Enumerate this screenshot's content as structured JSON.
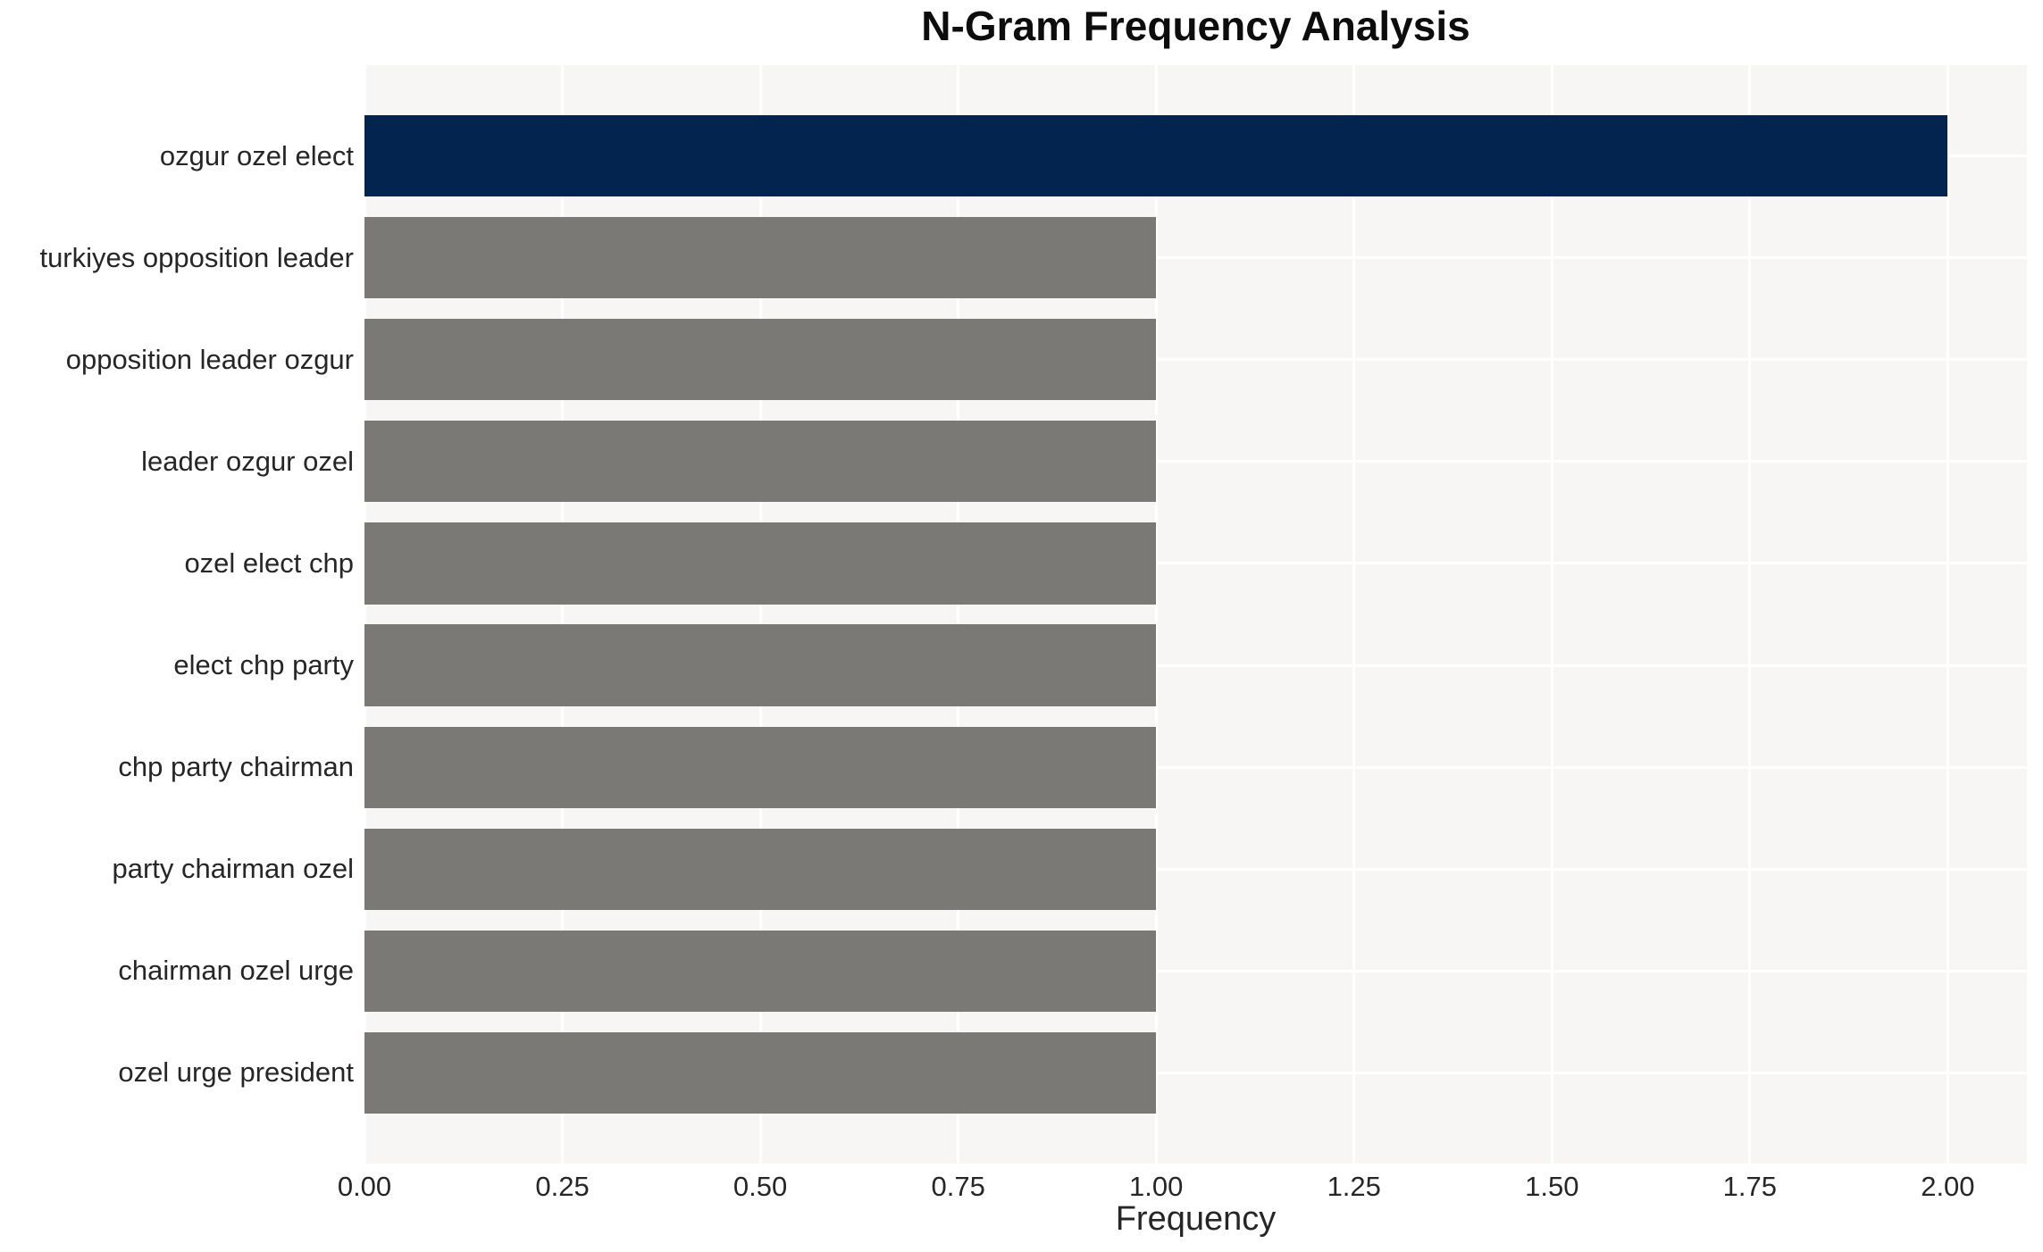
{
  "title": "N-Gram Frequency Analysis",
  "chart_data": {
    "type": "bar",
    "orientation": "horizontal",
    "title": "N-Gram Frequency Analysis",
    "xlabel": "Frequency",
    "ylabel": "",
    "categories": [
      "ozgur ozel elect",
      "turkiyes opposition leader",
      "opposition leader ozgur",
      "leader ozgur ozel",
      "ozel elect chp",
      "elect chp party",
      "chp party chairman",
      "party chairman ozel",
      "chairman ozel urge",
      "ozel urge president"
    ],
    "values": [
      2,
      1,
      1,
      1,
      1,
      1,
      1,
      1,
      1,
      1
    ],
    "xlim": [
      0,
      2.1
    ],
    "xticks": [
      0.0,
      0.25,
      0.5,
      0.75,
      1.0,
      1.25,
      1.5,
      1.75,
      2.0
    ],
    "xtick_labels": [
      "0.00",
      "0.25",
      "0.50",
      "0.75",
      "1.00",
      "1.25",
      "1.50",
      "1.75",
      "2.00"
    ],
    "grid": true,
    "legend": false,
    "bar_colors": [
      "#02244e",
      "#7a7975",
      "#7a7975",
      "#7a7975",
      "#7a7975",
      "#7a7975",
      "#7a7975",
      "#7a7975",
      "#7a7975",
      "#7a7975"
    ],
    "colors": {
      "highlight_bar": "#02244e",
      "default_bar": "#7a7975",
      "plot_background": "#f7f6f5",
      "figure_background": "#ffffff",
      "gridline": "#ffffff",
      "tick_text": "#262626",
      "title_text": "#0d0d0d"
    }
  }
}
